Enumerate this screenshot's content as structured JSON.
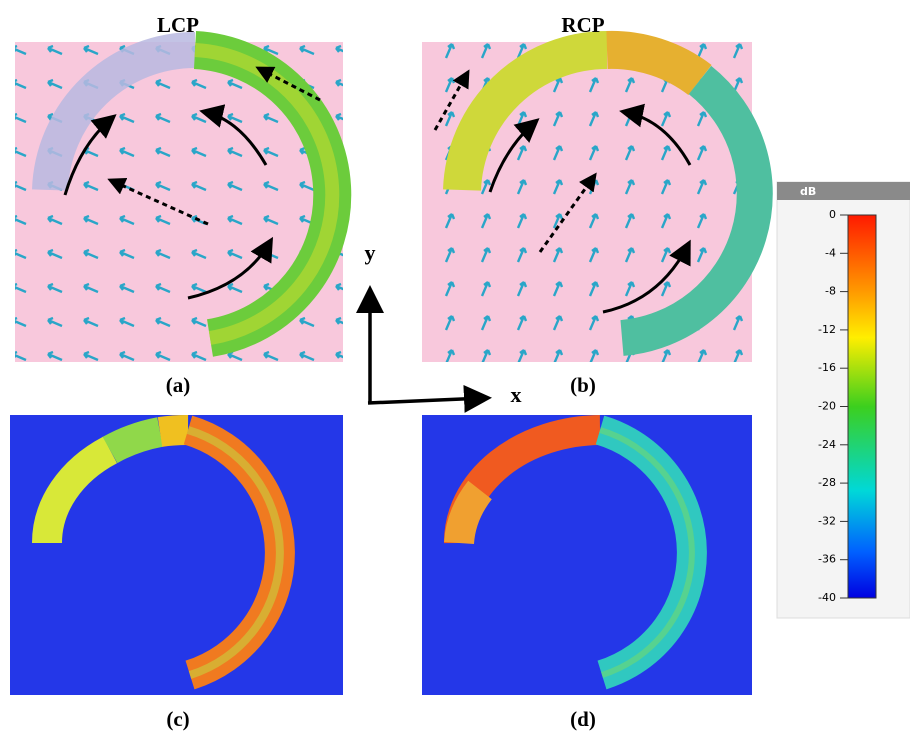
{
  "panels": [
    {
      "title": "LCP",
      "label": "(a)"
    },
    {
      "title": "RCP",
      "label": "(b)"
    },
    {
      "label": "(c)"
    },
    {
      "label": "(d)"
    }
  ],
  "axes": {
    "y": "y",
    "x": "x"
  },
  "colorbar": {
    "title": "dB",
    "ticks": [
      0,
      -4,
      -8,
      -12,
      -16,
      -20,
      -24,
      -28,
      -32,
      -36,
      -40
    ]
  }
}
